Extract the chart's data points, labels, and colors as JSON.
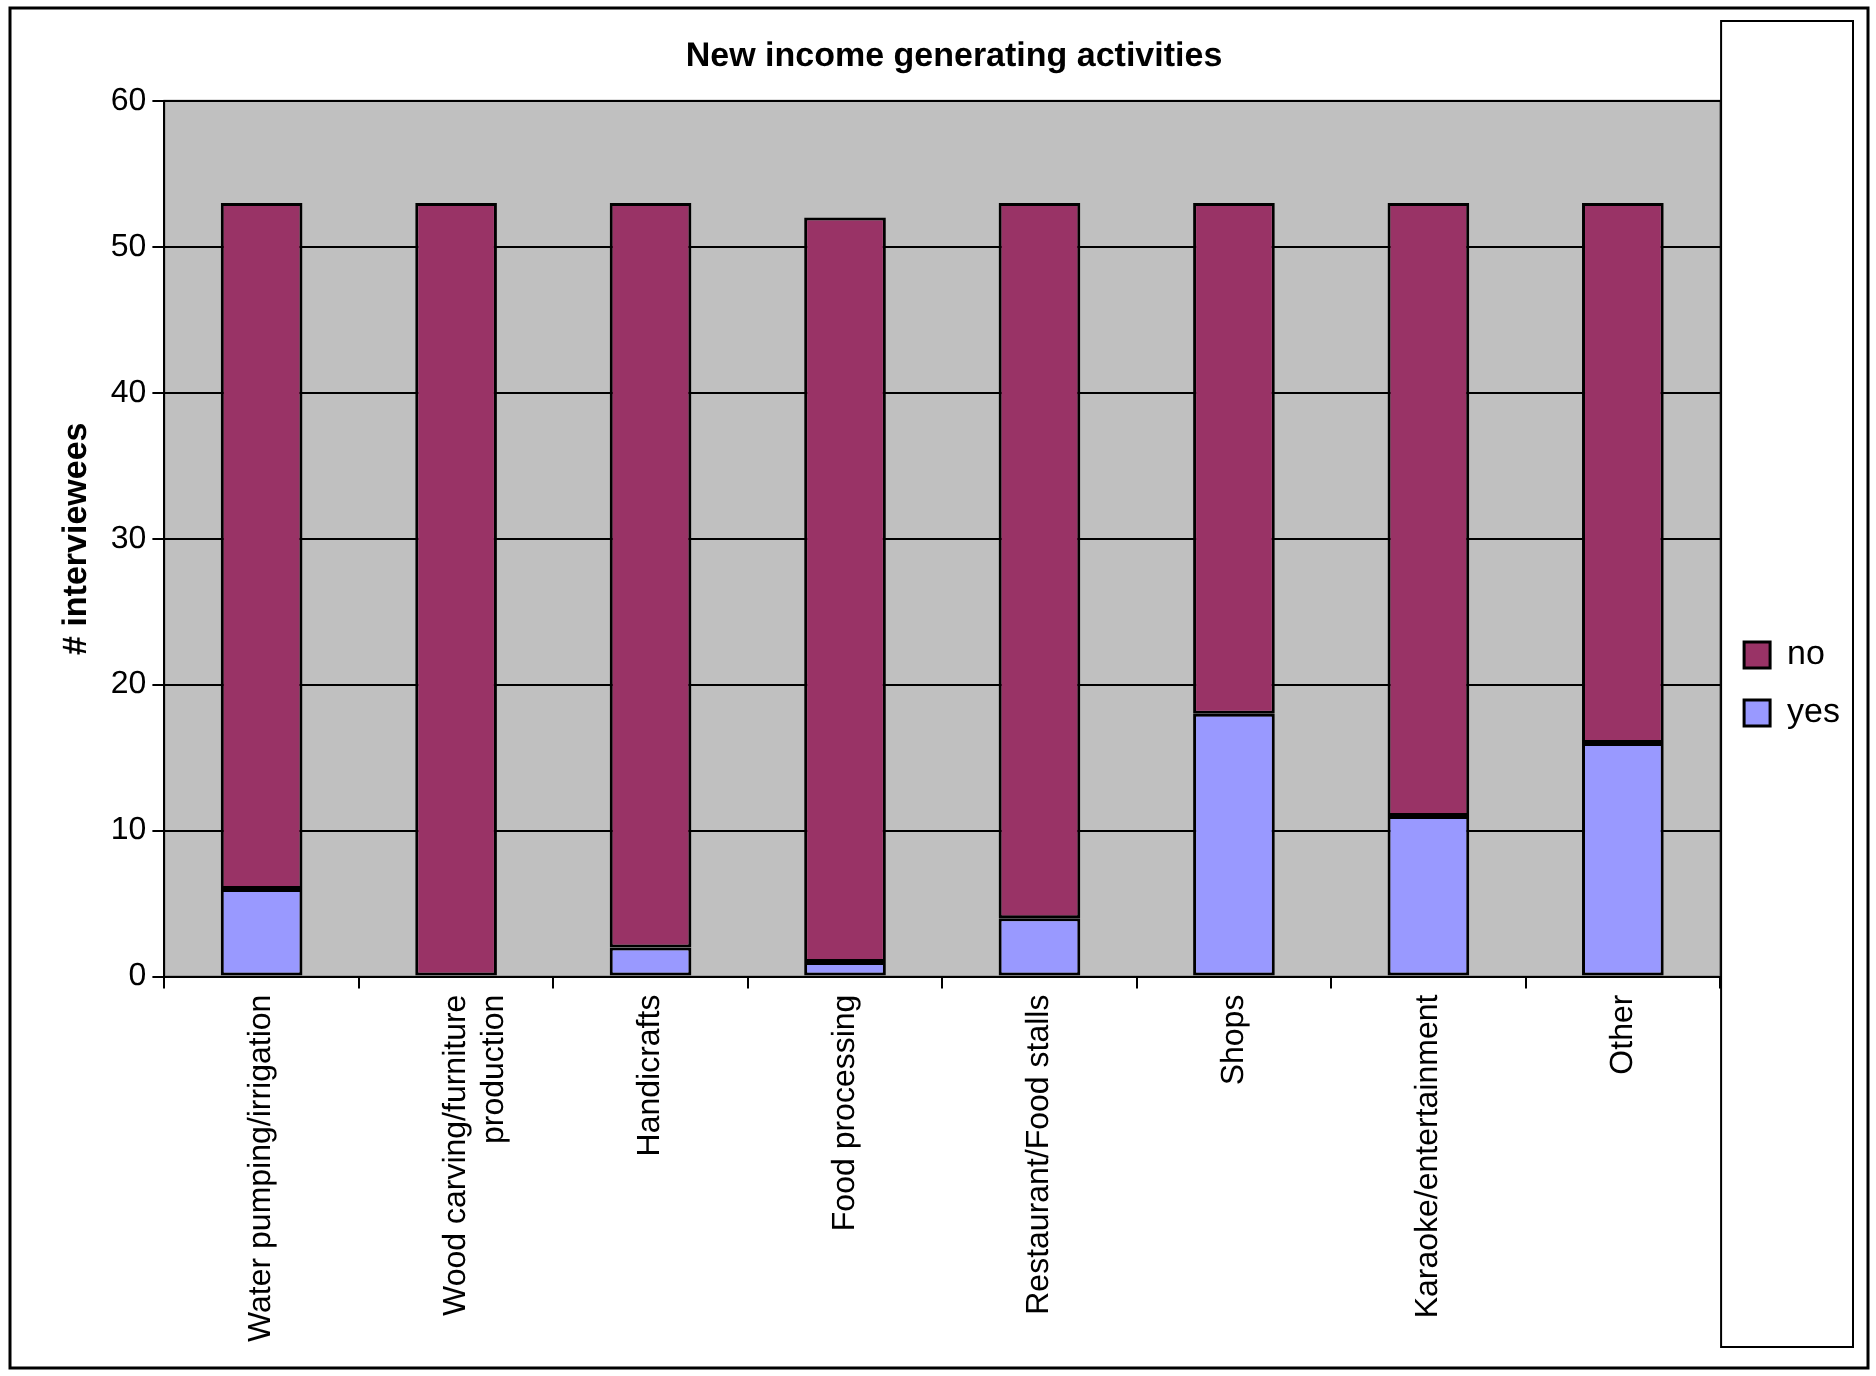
{
  "chart_data": {
    "type": "bar",
    "title": "New income generating activities",
    "ylabel": "# interviewees",
    "categories": [
      "Water pumping/irrigation",
      "Wood carving/furniture production",
      "Handicrafts",
      "Food processing",
      "Restaurant/Food stalls",
      "Shops",
      "Karaoke/entertainment",
      "Other"
    ],
    "series": [
      {
        "name": "yes",
        "color": "#9999ff",
        "values": [
          6,
          0,
          2,
          1,
          4,
          18,
          11,
          16
        ]
      },
      {
        "name": "no",
        "color": "#993366",
        "values": [
          47,
          53,
          51,
          51,
          49,
          35,
          42,
          37
        ]
      }
    ],
    "stacked": true,
    "ylim": [
      0,
      60
    ],
    "yticks": [
      0,
      10,
      20,
      30,
      40,
      50,
      60
    ],
    "grid": "y",
    "legend": "right"
  }
}
